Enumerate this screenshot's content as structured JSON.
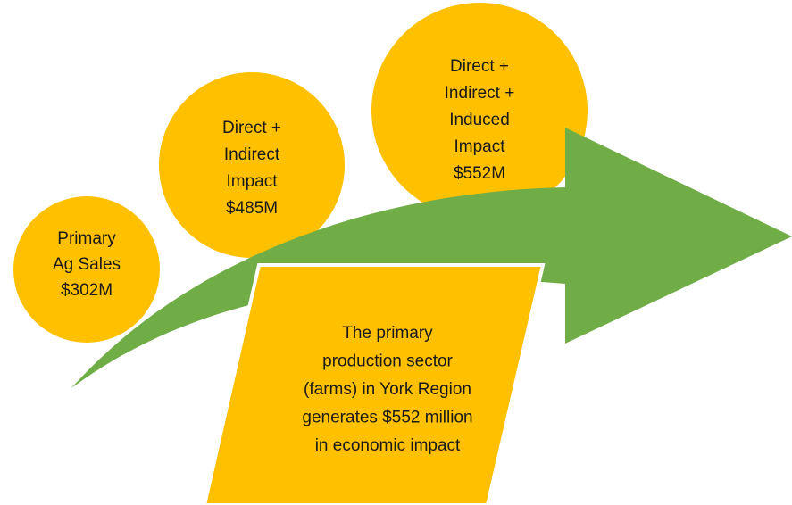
{
  "nodes": [
    {
      "lines": [
        "Primary",
        "Ag Sales",
        "$302M"
      ]
    },
    {
      "lines": [
        "Direct +",
        "Indirect",
        "Impact",
        "$485M"
      ]
    },
    {
      "lines": [
        "Direct +",
        "Indirect +",
        "Induced",
        "Impact",
        "$552M"
      ]
    }
  ],
  "callout": {
    "lines": [
      "The primary",
      "production sector",
      "(farms) in York Region",
      "generates $552 million",
      "in economic impact"
    ]
  }
}
